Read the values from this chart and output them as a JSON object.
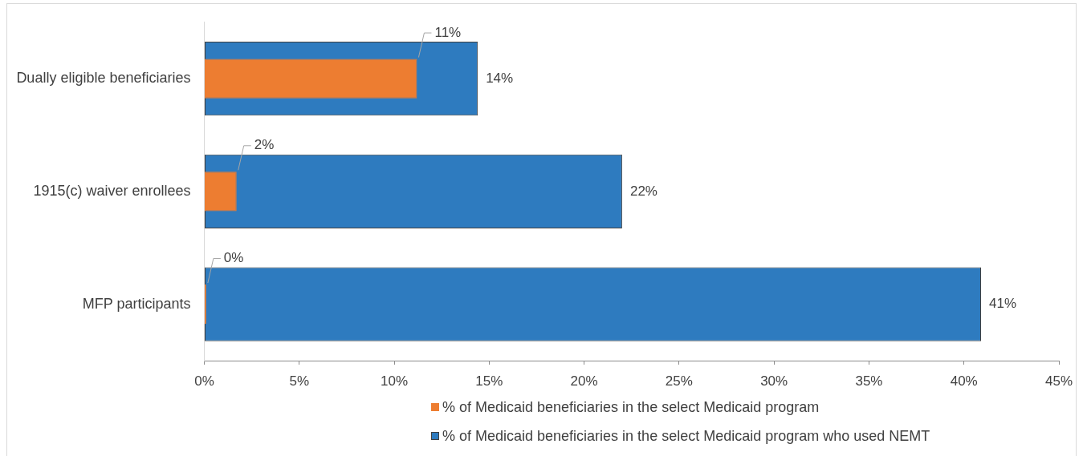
{
  "chart_data": {
    "type": "bar",
    "orientation": "horizontal",
    "categories": [
      "Dually eligible beneficiaries",
      "1915(c) waiver enrollees",
      "MFP participants"
    ],
    "series": [
      {
        "name": "% of Medicaid beneficiaries in the select Medicaid program",
        "color": "#ed7d31",
        "values": [
          11.2,
          1.7,
          0.1
        ],
        "value_labels": [
          "11%",
          "2%",
          "0%"
        ]
      },
      {
        "name": "% of Medicaid beneficiaries in the select Medicaid program who used NEMT",
        "color": "#2e7bbf",
        "values": [
          14.4,
          22.0,
          40.9
        ],
        "value_labels": [
          "14%",
          "22%",
          "41%"
        ]
      }
    ],
    "xlim": [
      0,
      45
    ],
    "xticks": [
      {
        "value": 0,
        "label": "0%"
      },
      {
        "value": 5,
        "label": "5%"
      },
      {
        "value": 10,
        "label": "10%"
      },
      {
        "value": 15,
        "label": "15%"
      },
      {
        "value": 20,
        "label": "20%"
      },
      {
        "value": 25,
        "label": "25%"
      },
      {
        "value": 30,
        "label": "30%"
      },
      {
        "value": 35,
        "label": "35%"
      },
      {
        "value": 40,
        "label": "40%"
      },
      {
        "value": 45,
        "label": "45%"
      }
    ],
    "legend": "bottom"
  }
}
